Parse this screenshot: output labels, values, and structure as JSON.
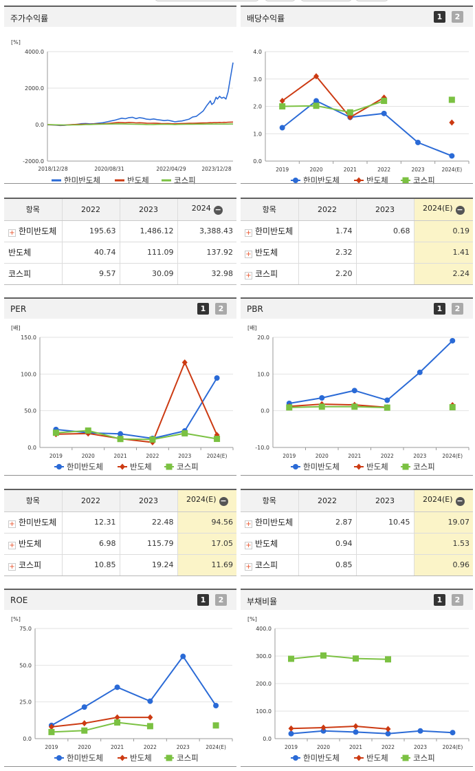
{
  "panels": [
    {
      "title": "주가수익률",
      "pages": [],
      "chart_data": {
        "type": "line",
        "unit": "[%]",
        "y_ticks": [
          "4000.0",
          "2000.0",
          "0.0",
          "-2000.0"
        ],
        "ylim": [
          -2000,
          4000
        ],
        "x_ticks": [
          "2018/12/28",
          "2020/08/31",
          "2022/04/29",
          "2023/12/28"
        ],
        "x": [
          0,
          6,
          12,
          18,
          24,
          30,
          36,
          42,
          48,
          54,
          60,
          66,
          72,
          78,
          84,
          90,
          96,
          100,
          105,
          110,
          115,
          120,
          125,
          130,
          135,
          140,
          145,
          150,
          155,
          160,
          165,
          170,
          175,
          180,
          185,
          190,
          195,
          200,
          205,
          210,
          215,
          220,
          225,
          228,
          230,
          232,
          235,
          238,
          240,
          243,
          246,
          249,
          252,
          255,
          258,
          262
        ],
        "series": [
          {
            "name": "한미반도체",
            "color": "#2a6ad6",
            "marker": "circle",
            "values": [
              -10,
              -20,
              -30,
              -50,
              -40,
              -20,
              0,
              20,
              50,
              60,
              40,
              50,
              80,
              100,
              150,
              200,
              250,
              300,
              350,
              320,
              380,
              400,
              330,
              380,
              350,
              300,
              280,
              310,
              270,
              250,
              220,
              240,
              200,
              150,
              180,
              200,
              250,
              300,
              420,
              450,
              600,
              750,
              1050,
              1200,
              1300,
              1100,
              1200,
              1500,
              1400,
              1550,
              1450,
              1500,
              1400,
              1800,
              2500,
              3400
            ]
          },
          {
            "name": "반도체",
            "color": "#cc3a12",
            "marker": "diamond",
            "values": [
              -5,
              -10,
              -20,
              -30,
              -25,
              -10,
              5,
              10,
              20,
              25,
              20,
              30,
              40,
              45,
              60,
              80,
              100,
              120,
              110,
              100,
              120,
              115,
              95,
              100,
              90,
              80,
              75,
              80,
              70,
              60,
              55,
              60,
              50,
              45,
              55,
              60,
              65,
              70,
              75,
              80,
              85,
              90,
              95,
              100,
              105,
              100,
              110,
              115,
              110,
              120,
              115,
              125,
              120,
              130,
              135,
              140
            ]
          },
          {
            "name": "코스피",
            "color": "#7bc142",
            "marker": "square",
            "values": [
              0,
              -5,
              -10,
              -15,
              -20,
              -25,
              -20,
              -15,
              -10,
              0,
              5,
              10,
              20,
              25,
              30,
              35,
              40,
              45,
              40,
              35,
              30,
              25,
              20,
              15,
              10,
              5,
              0,
              5,
              10,
              15,
              20,
              15,
              10,
              5,
              10,
              15,
              20,
              25,
              20,
              25,
              30,
              25,
              30,
              35,
              30,
              35,
              30,
              35,
              30,
              32,
              30,
              33,
              31,
              32,
              33,
              33
            ]
          }
        ]
      },
      "table": {
        "headers": [
          "항목",
          "2022",
          "2023",
          "2024"
        ],
        "rows": [
          {
            "name": "한미반도체",
            "expand": true,
            "cells": [
              "195.63",
              "1,486.12",
              "3,388.43"
            ]
          },
          {
            "name": "반도체",
            "expand": false,
            "cells": [
              "40.74",
              "111.09",
              "137.92"
            ]
          },
          {
            "name": "코스피",
            "expand": false,
            "cells": [
              "9.57",
              "30.09",
              "32.98"
            ]
          }
        ]
      }
    },
    {
      "title": "배당수익률",
      "pages": [
        "1",
        "2"
      ],
      "chart_data": {
        "type": "line",
        "unit": "",
        "y_ticks": [
          "4.0",
          "3.0",
          "2.0",
          "1.0",
          "0.0"
        ],
        "ylim": [
          0,
          4
        ],
        "categories": [
          "2019",
          "2020",
          "2021",
          "2022",
          "2023",
          "2024(E)"
        ],
        "series": [
          {
            "name": "한미반도체",
            "color": "#2a6ad6",
            "marker": "circle",
            "values": [
              1.22,
              2.2,
              1.6,
              1.74,
              0.68,
              0.19
            ]
          },
          {
            "name": "반도체",
            "color": "#cc3a12",
            "marker": "diamond",
            "values": [
              2.2,
              3.1,
              1.6,
              2.32,
              null,
              1.41
            ]
          },
          {
            "name": "코스피",
            "color": "#7bc142",
            "marker": "square",
            "values": [
              2.0,
              2.02,
              1.78,
              2.2,
              null,
              2.24
            ]
          }
        ]
      },
      "table": {
        "headers": [
          "항목",
          "2022",
          "2023",
          "2024(E)"
        ],
        "rows": [
          {
            "name": "한미반도체",
            "expand": true,
            "cells": [
              "1.74",
              "0.68",
              "0.19"
            ]
          },
          {
            "name": "반도체",
            "expand": true,
            "cells": [
              "2.32",
              "",
              "1.41"
            ]
          },
          {
            "name": "코스피",
            "expand": true,
            "cells": [
              "2.20",
              "",
              "2.24"
            ]
          }
        ]
      }
    },
    {
      "title": "PER",
      "pages": [
        "1",
        "2"
      ],
      "chart_data": {
        "type": "line",
        "unit": "[배]",
        "y_ticks": [
          "150.0",
          "100.0",
          "50.0",
          "0.0"
        ],
        "ylim": [
          0,
          150
        ],
        "categories": [
          "2019",
          "2020",
          "2021",
          "2022",
          "2023",
          "2024(E)"
        ],
        "series": [
          {
            "name": "한미반도체",
            "color": "#2a6ad6",
            "marker": "circle",
            "values": [
              24.5,
              20,
              18.5,
              12.31,
              22.48,
              94.56
            ]
          },
          {
            "name": "반도체",
            "color": "#cc3a12",
            "marker": "diamond",
            "values": [
              18,
              19,
              12,
              6.98,
              115.79,
              17.05
            ]
          },
          {
            "name": "코스피",
            "color": "#7bc142",
            "marker": "square",
            "values": [
              20,
              23,
              11.5,
              10.85,
              19.24,
              11.69
            ]
          }
        ]
      },
      "table": {
        "headers": [
          "항목",
          "2022",
          "2023",
          "2024(E)"
        ],
        "rows": [
          {
            "name": "한미반도체",
            "expand": true,
            "cells": [
              "12.31",
              "22.48",
              "94.56"
            ]
          },
          {
            "name": "반도체",
            "expand": true,
            "cells": [
              "6.98",
              "115.79",
              "17.05"
            ]
          },
          {
            "name": "코스피",
            "expand": true,
            "cells": [
              "10.85",
              "19.24",
              "11.69"
            ]
          }
        ]
      }
    },
    {
      "title": "PBR",
      "pages": [
        "1",
        "2"
      ],
      "chart_data": {
        "type": "line",
        "unit": "[배]",
        "y_ticks": [
          "20.0",
          "10.0",
          "0.0",
          "-10.0"
        ],
        "ylim": [
          -10,
          20
        ],
        "categories": [
          "2019",
          "2020",
          "2021",
          "2022",
          "2023",
          "2024(E)"
        ],
        "series": [
          {
            "name": "한미반도체",
            "color": "#2a6ad6",
            "marker": "circle",
            "values": [
              2,
              3.5,
              5.5,
              2.87,
              10.45,
              19.07
            ]
          },
          {
            "name": "반도체",
            "color": "#cc3a12",
            "marker": "diamond",
            "values": [
              1.2,
              1.8,
              1.6,
              0.94,
              null,
              1.53
            ]
          },
          {
            "name": "코스피",
            "color": "#7bc142",
            "marker": "square",
            "values": [
              0.9,
              1.1,
              1.1,
              0.85,
              null,
              0.96
            ]
          }
        ]
      },
      "table": {
        "headers": [
          "항목",
          "2022",
          "2023",
          "2024(E)"
        ],
        "rows": [
          {
            "name": "한미반도체",
            "expand": true,
            "cells": [
              "2.87",
              "10.45",
              "19.07"
            ]
          },
          {
            "name": "반도체",
            "expand": true,
            "cells": [
              "0.94",
              "",
              "1.53"
            ]
          },
          {
            "name": "코스피",
            "expand": true,
            "cells": [
              "0.85",
              "",
              "0.96"
            ]
          }
        ]
      }
    },
    {
      "title": "ROE",
      "pages": [
        "1",
        "2"
      ],
      "chart_data": {
        "type": "line",
        "unit": "[%]",
        "y_ticks": [
          "75.0",
          "50.0",
          "25.0",
          "0.0"
        ],
        "ylim": [
          0,
          75
        ],
        "categories": [
          "2019",
          "2020",
          "2021",
          "2022",
          "2023",
          "2024(E)"
        ],
        "series": [
          {
            "name": "한미반도체",
            "color": "#2a6ad6",
            "marker": "circle",
            "values": [
              9,
              21.5,
              35,
              25.5,
              56,
              22.5
            ]
          },
          {
            "name": "반도체",
            "color": "#cc3a12",
            "marker": "diamond",
            "values": [
              8,
              10.5,
              14.5,
              14.5,
              null,
              9
            ]
          },
          {
            "name": "코스피",
            "color": "#7bc142",
            "marker": "square",
            "values": [
              4.5,
              5.5,
              11,
              8.5,
              null,
              9
            ]
          }
        ]
      }
    },
    {
      "title": "부채비율",
      "pages": [
        "1",
        "2"
      ],
      "chart_data": {
        "type": "line",
        "unit": "[%]",
        "y_ticks": [
          "400.0",
          "300.0",
          "200.0",
          "100.0",
          "0.0"
        ],
        "ylim": [
          0,
          400
        ],
        "categories": [
          "2019",
          "2020",
          "2021",
          "2022",
          "2023",
          "2024(E)"
        ],
        "series": [
          {
            "name": "한미반도체",
            "color": "#2a6ad6",
            "marker": "circle",
            "values": [
              18,
              28,
              24,
              18,
              28,
              22
            ]
          },
          {
            "name": "반도체",
            "color": "#cc3a12",
            "marker": "diamond",
            "values": [
              37,
              40,
              45,
              35,
              null,
              null
            ]
          },
          {
            "name": "코스피",
            "color": "#7bc142",
            "marker": "square",
            "values": [
              290,
              302,
              291,
              288,
              null,
              null
            ]
          }
        ]
      }
    }
  ]
}
